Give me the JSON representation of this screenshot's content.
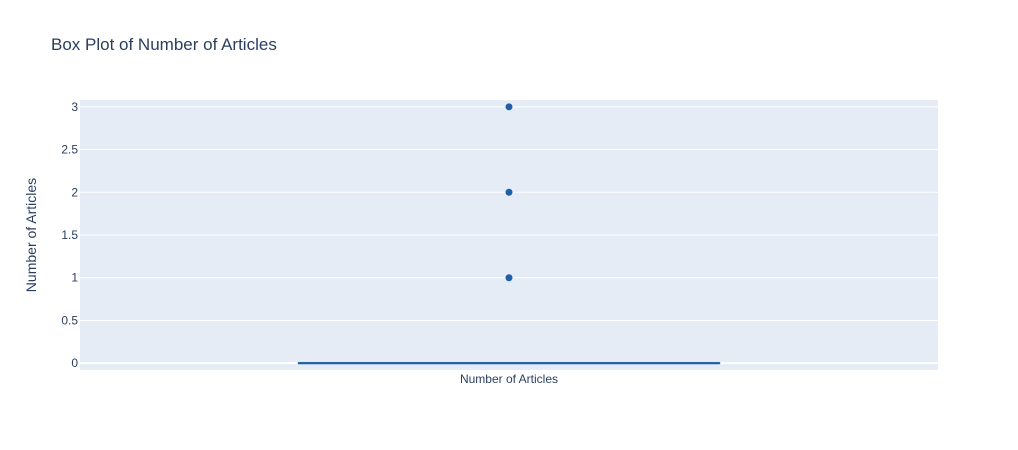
{
  "chart_data": {
    "type": "box",
    "title": "Box Plot of Number of Articles",
    "xlabel": "",
    "ylabel": "Number of Articles",
    "categories": [
      "Number of Articles"
    ],
    "y_ticks": [
      "0",
      "0.5",
      "1",
      "1.5",
      "2",
      "2.5",
      "3"
    ],
    "ylim": [
      -0.08,
      3.08
    ],
    "grid": true,
    "legend": "none",
    "series": [
      {
        "category": "Number of Articles",
        "min": 0,
        "q1": 0,
        "median": 0,
        "q3": 0,
        "upper_fence": 0,
        "outliers": [
          1,
          2,
          3
        ]
      }
    ],
    "colors": {
      "box": "#1f5fa8",
      "marker": "#1f5fa8",
      "plot_background": "#e5ecf6",
      "grid": "#ffffff",
      "text": "#2a3f5f"
    }
  }
}
